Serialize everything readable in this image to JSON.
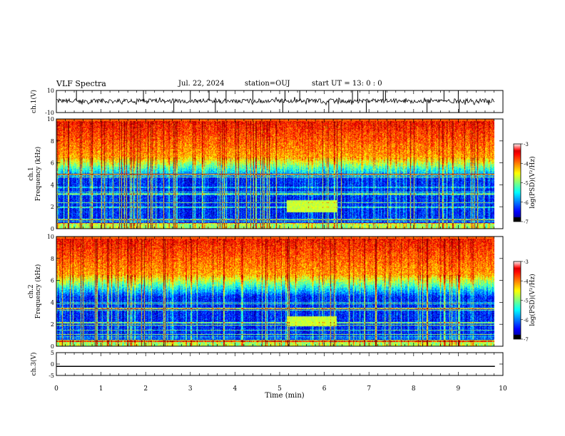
{
  "header": {
    "title": "VLF Spectra",
    "date": "Jul. 22, 2024",
    "station": "station=OUJ",
    "start": "start UT = 13: 0 : 0"
  },
  "chart_data": {
    "type": "heatmap",
    "xlabel": "Time (min)",
    "xlim": [
      0,
      10
    ],
    "x_ticks": [
      "0",
      "1",
      "2",
      "3",
      "4",
      "5",
      "6",
      "7",
      "8",
      "9",
      "10"
    ],
    "data_end_min": 9.82,
    "panels": [
      {
        "id": "ch1-waveform",
        "ylabel": "ch.1(V)",
        "ylim": [
          -10,
          10
        ],
        "y_ticks": [
          "10",
          "-10"
        ],
        "baseline_v": 0.5,
        "noise_amplitude_v": 2,
        "burst_times_min": [
          0.45,
          1.95,
          2.63,
          3.0,
          3.42,
          3.56,
          3.8,
          4.4,
          5.07,
          5.12,
          5.45,
          6.1,
          6.63,
          6.75,
          6.94,
          7.32,
          7.37,
          8.3,
          8.68,
          9.0,
          9.02
        ]
      },
      {
        "id": "ch1-spectrogram",
        "ylabel_lines": [
          "ch.1",
          "Frequency (kHz)"
        ],
        "ylim": [
          0,
          10
        ],
        "y_ticks": [
          "0",
          "2",
          "4",
          "6",
          "8",
          "10"
        ],
        "colorbar": {
          "label": "log(PSD)(V²/Hz)",
          "range": [
            -7,
            -3
          ],
          "ticks": [
            "-3",
            "-4",
            "-5",
            "-6",
            "-7"
          ]
        },
        "band_min": [
          5.25,
          6.4
        ],
        "band_khz": [
          1.5,
          2.6
        ]
      },
      {
        "id": "ch2-spectrogram",
        "ylabel_lines": [
          "ch.2",
          "Frequency (kHz)"
        ],
        "ylim": [
          0,
          10
        ],
        "y_ticks": [
          "0",
          "2",
          "4",
          "6",
          "8",
          "10"
        ],
        "colorbar": {
          "label": "log(PSD)(V²/Hz)",
          "range": [
            -7,
            -3
          ],
          "ticks": [
            "-3",
            "-4",
            "-5",
            "-6",
            "-7"
          ]
        },
        "band_min": [
          5.25,
          6.4
        ],
        "band_khz": [
          1.8,
          2.7
        ]
      },
      {
        "id": "ch3-waveform",
        "ylabel": "ch.3(V)",
        "ylim": [
          -5,
          5
        ],
        "y_ticks": [
          "5",
          "0",
          "-5"
        ],
        "value_v": -1
      }
    ]
  }
}
